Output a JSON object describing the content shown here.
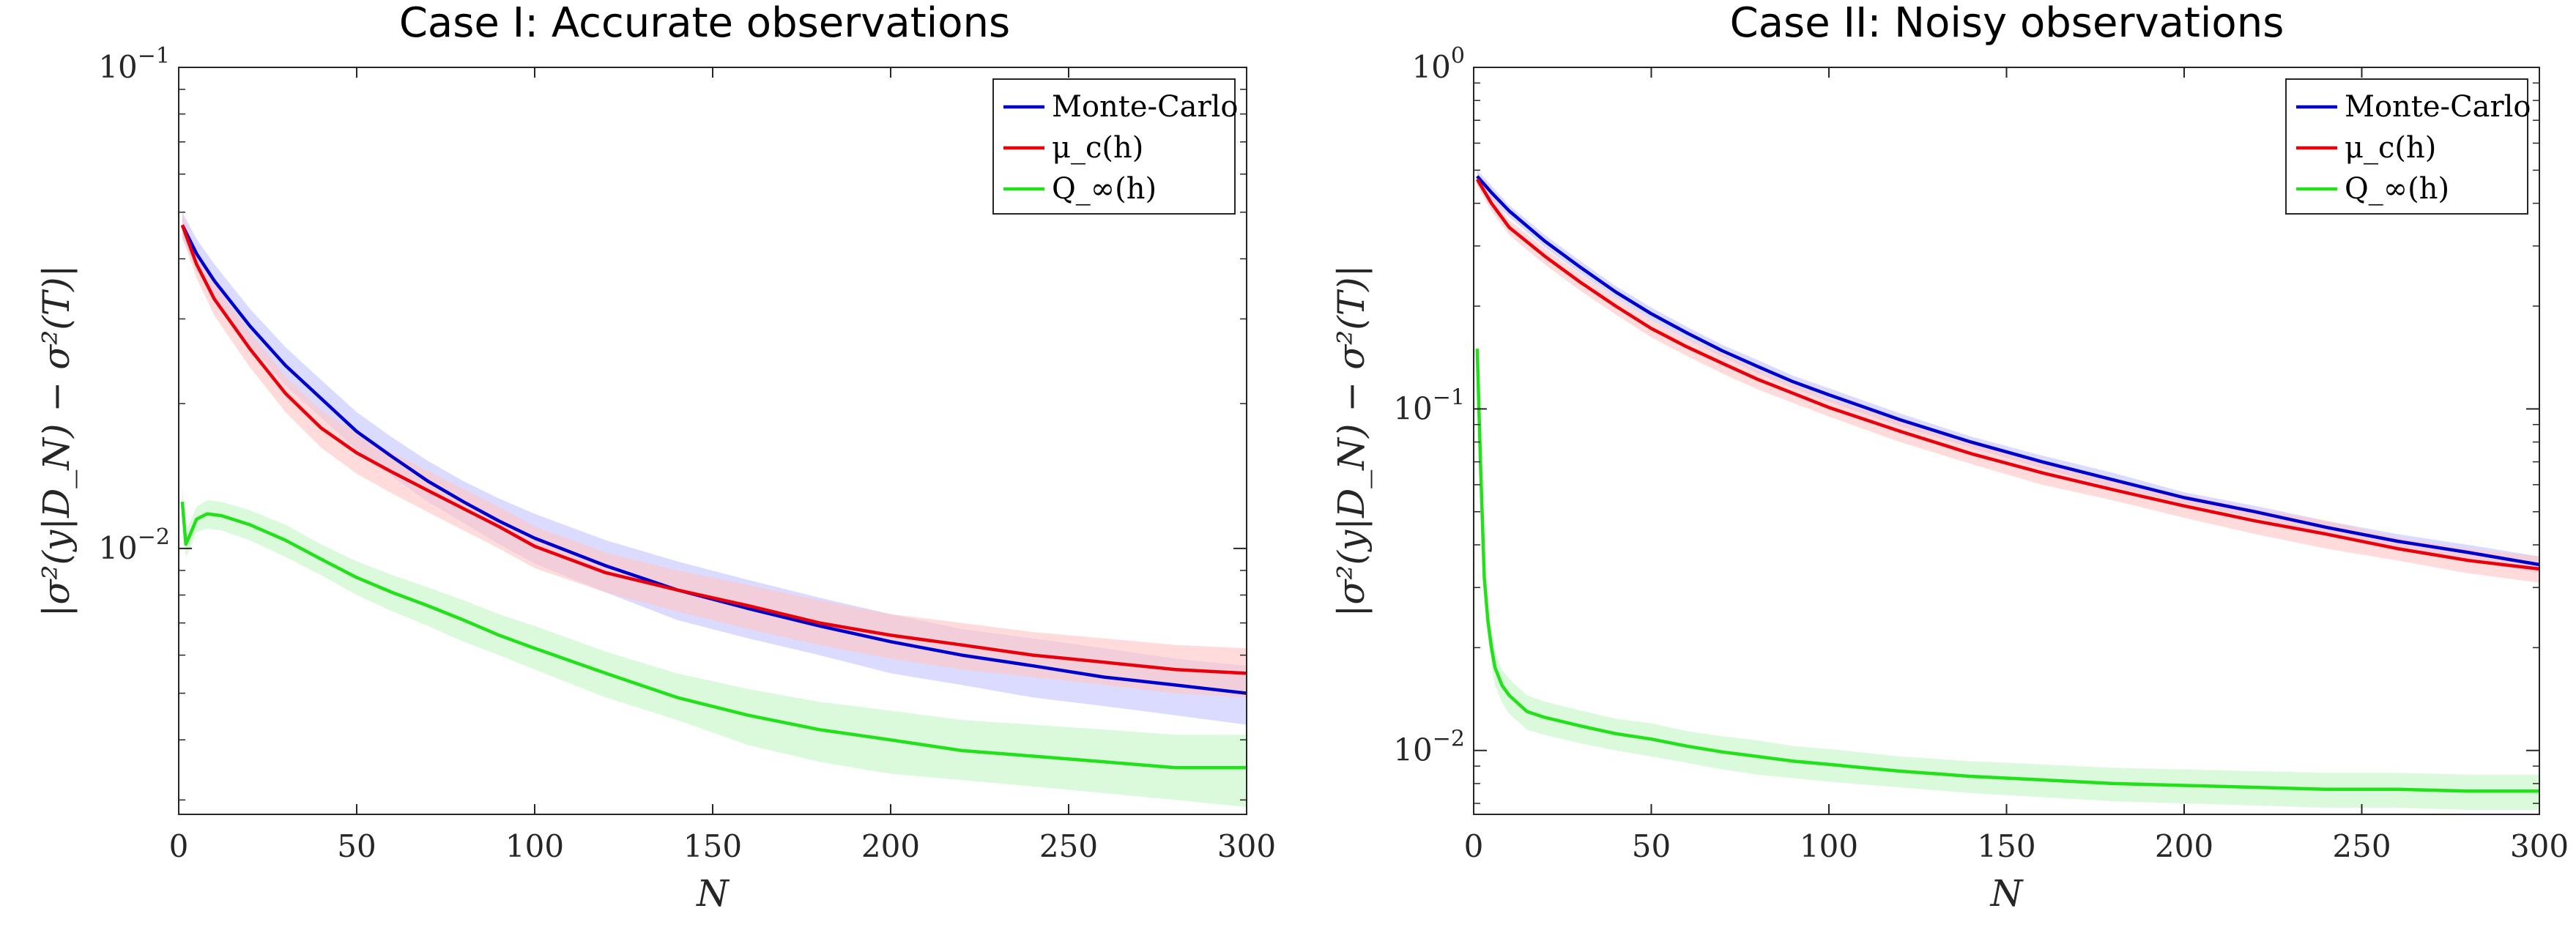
{
  "chart_data": [
    {
      "type": "line",
      "title": "Case I: Accurate observations",
      "xlabel": "N",
      "ylabel": "|σ²(y|D_N) − σ²(T)|",
      "yscale": "log",
      "xlim": [
        0,
        300
      ],
      "ylim": [
        0.0028,
        0.1
      ],
      "x_ticks": [
        "0",
        "50",
        "100",
        "150",
        "200",
        "250",
        "300"
      ],
      "y_ticks": [
        {
          "value": 0.1,
          "base": "10",
          "exp": "−1"
        },
        {
          "value": 0.01,
          "base": "10",
          "exp": "−2"
        }
      ],
      "legend_position": "top-right",
      "series": [
        {
          "name": "Monte-Carlo",
          "color": "#0000cc",
          "band": "#c8c8ff",
          "x": [
            1,
            5,
            10,
            20,
            30,
            40,
            50,
            60,
            70,
            80,
            90,
            100,
            120,
            140,
            160,
            180,
            200,
            220,
            240,
            260,
            280,
            300
          ],
          "y": [
            0.047,
            0.041,
            0.036,
            0.029,
            0.024,
            0.0205,
            0.0175,
            0.0155,
            0.0138,
            0.0125,
            0.0114,
            0.0105,
            0.0092,
            0.0082,
            0.0075,
            0.0069,
            0.0064,
            0.006,
            0.0057,
            0.0054,
            0.0052,
            0.005
          ],
          "lo": [
            0.044,
            0.038,
            0.033,
            0.0265,
            0.0218,
            0.0187,
            0.016,
            0.0141,
            0.0125,
            0.0113,
            0.0102,
            0.0093,
            0.0081,
            0.0071,
            0.0065,
            0.006,
            0.0055,
            0.0052,
            0.0049,
            0.0047,
            0.0045,
            0.0043
          ],
          "hi": [
            0.05,
            0.044,
            0.039,
            0.0315,
            0.0262,
            0.0224,
            0.0192,
            0.017,
            0.0152,
            0.0138,
            0.0127,
            0.0118,
            0.0104,
            0.0094,
            0.0086,
            0.0079,
            0.0073,
            0.0068,
            0.0065,
            0.0062,
            0.0059,
            0.0057
          ]
        },
        {
          "name": "μ_c(h)",
          "color": "#e8000b",
          "band": "#ffc8c8",
          "x": [
            1,
            5,
            10,
            20,
            30,
            40,
            50,
            60,
            70,
            80,
            90,
            100,
            120,
            140,
            160,
            180,
            200,
            220,
            240,
            260,
            280,
            300
          ],
          "y": [
            0.047,
            0.039,
            0.033,
            0.026,
            0.021,
            0.0178,
            0.0158,
            0.0144,
            0.0132,
            0.0121,
            0.0111,
            0.0101,
            0.0089,
            0.0082,
            0.0076,
            0.007,
            0.0066,
            0.0063,
            0.006,
            0.0058,
            0.0056,
            0.0055
          ],
          "lo": [
            0.0445,
            0.0365,
            0.0305,
            0.0238,
            0.0192,
            0.0162,
            0.0143,
            0.013,
            0.0119,
            0.0109,
            0.01,
            0.0091,
            0.0081,
            0.0074,
            0.0068,
            0.0063,
            0.0059,
            0.0056,
            0.0054,
            0.0052,
            0.005,
            0.0049
          ],
          "hi": [
            0.0495,
            0.0415,
            0.0355,
            0.0282,
            0.0228,
            0.0194,
            0.0173,
            0.0158,
            0.0145,
            0.0133,
            0.0122,
            0.0111,
            0.0098,
            0.009,
            0.0084,
            0.0078,
            0.0073,
            0.007,
            0.0067,
            0.0065,
            0.0063,
            0.0062
          ]
        },
        {
          "name": "Q_∞(h)",
          "color": "#22e01a",
          "band": "#c8f7c8",
          "x": [
            1,
            2,
            3,
            5,
            8,
            12,
            20,
            30,
            40,
            50,
            60,
            70,
            80,
            90,
            100,
            120,
            140,
            160,
            180,
            200,
            220,
            240,
            260,
            280,
            300
          ],
          "y": [
            0.0125,
            0.0102,
            0.0106,
            0.0115,
            0.0118,
            0.0117,
            0.0112,
            0.0104,
            0.0095,
            0.0087,
            0.0081,
            0.0076,
            0.0071,
            0.0066,
            0.0062,
            0.0055,
            0.0049,
            0.0045,
            0.0042,
            0.004,
            0.0038,
            0.0037,
            0.0036,
            0.0035,
            0.0035
          ],
          "lo": [
            0.0115,
            0.0096,
            0.0099,
            0.0108,
            0.011,
            0.0109,
            0.0104,
            0.0096,
            0.0088,
            0.008,
            0.0074,
            0.0069,
            0.0064,
            0.006,
            0.0056,
            0.0049,
            0.0044,
            0.0039,
            0.0036,
            0.0034,
            0.0033,
            0.0032,
            0.0031,
            0.003,
            0.0029
          ],
          "hi": [
            0.0135,
            0.0108,
            0.0113,
            0.0122,
            0.0126,
            0.0125,
            0.012,
            0.0112,
            0.0102,
            0.0094,
            0.0088,
            0.0083,
            0.0078,
            0.0073,
            0.0069,
            0.0061,
            0.0055,
            0.0051,
            0.0048,
            0.0046,
            0.0044,
            0.0043,
            0.0042,
            0.0041,
            0.0041
          ]
        }
      ]
    },
    {
      "type": "line",
      "title": "Case II: Noisy observations",
      "xlabel": "N",
      "ylabel": "|σ²(y|D_N) − σ²(T)|",
      "yscale": "log",
      "xlim": [
        0,
        300
      ],
      "ylim": [
        0.0065,
        1
      ],
      "x_ticks": [
        "0",
        "50",
        "100",
        "150",
        "200",
        "250",
        "300"
      ],
      "y_ticks": [
        {
          "value": 1,
          "base": "10",
          "exp": "0"
        },
        {
          "value": 0.1,
          "base": "10",
          "exp": "−1"
        },
        {
          "value": 0.01,
          "base": "10",
          "exp": "−2"
        }
      ],
      "legend_position": "top-right",
      "series": [
        {
          "name": "Monte-Carlo",
          "color": "#0000cc",
          "band": "#c8c8ff",
          "x": [
            1,
            5,
            10,
            20,
            30,
            40,
            50,
            60,
            70,
            80,
            90,
            100,
            120,
            140,
            160,
            180,
            200,
            220,
            240,
            260,
            280,
            300
          ],
          "y": [
            0.48,
            0.43,
            0.38,
            0.31,
            0.26,
            0.22,
            0.19,
            0.167,
            0.148,
            0.133,
            0.12,
            0.11,
            0.093,
            0.08,
            0.07,
            0.062,
            0.055,
            0.05,
            0.045,
            0.041,
            0.038,
            0.035
          ],
          "lo": [
            0.46,
            0.41,
            0.365,
            0.297,
            0.249,
            0.211,
            0.182,
            0.16,
            0.142,
            0.127,
            0.115,
            0.105,
            0.089,
            0.077,
            0.067,
            0.059,
            0.053,
            0.048,
            0.043,
            0.039,
            0.036,
            0.033
          ],
          "hi": [
            0.5,
            0.45,
            0.395,
            0.323,
            0.271,
            0.229,
            0.198,
            0.174,
            0.154,
            0.139,
            0.125,
            0.115,
            0.097,
            0.083,
            0.073,
            0.065,
            0.057,
            0.052,
            0.047,
            0.043,
            0.04,
            0.037
          ]
        },
        {
          "name": "μ_c(h)",
          "color": "#e8000b",
          "band": "#ffc8c8",
          "x": [
            1,
            5,
            10,
            20,
            30,
            40,
            50,
            60,
            70,
            80,
            90,
            100,
            120,
            140,
            160,
            180,
            200,
            220,
            240,
            260,
            280,
            300
          ],
          "y": [
            0.47,
            0.4,
            0.34,
            0.28,
            0.235,
            0.2,
            0.172,
            0.152,
            0.136,
            0.122,
            0.111,
            0.101,
            0.086,
            0.074,
            0.065,
            0.058,
            0.052,
            0.047,
            0.043,
            0.039,
            0.036,
            0.034
          ],
          "lo": [
            0.45,
            0.38,
            0.323,
            0.265,
            0.222,
            0.189,
            0.162,
            0.143,
            0.127,
            0.114,
            0.104,
            0.095,
            0.08,
            0.069,
            0.06,
            0.054,
            0.048,
            0.043,
            0.039,
            0.036,
            0.033,
            0.031
          ],
          "hi": [
            0.49,
            0.42,
            0.357,
            0.295,
            0.248,
            0.211,
            0.182,
            0.161,
            0.145,
            0.13,
            0.118,
            0.107,
            0.092,
            0.079,
            0.07,
            0.062,
            0.056,
            0.051,
            0.047,
            0.042,
            0.039,
            0.037
          ]
        },
        {
          "name": "Q_∞(h)",
          "color": "#22e01a",
          "band": "#c8f7c8",
          "x": [
            1,
            2,
            3,
            4,
            5,
            6,
            8,
            10,
            15,
            20,
            30,
            40,
            50,
            60,
            70,
            80,
            90,
            100,
            120,
            140,
            160,
            180,
            200,
            220,
            240,
            260,
            280,
            300
          ],
          "y": [
            0.15,
            0.065,
            0.032,
            0.024,
            0.02,
            0.0175,
            0.0155,
            0.0145,
            0.013,
            0.0125,
            0.0118,
            0.0112,
            0.0108,
            0.0103,
            0.0099,
            0.0096,
            0.0093,
            0.0091,
            0.0087,
            0.0084,
            0.0082,
            0.008,
            0.0079,
            0.0078,
            0.0077,
            0.0077,
            0.0076,
            0.0076
          ],
          "lo": [
            0.14,
            0.06,
            0.029,
            0.0215,
            0.0178,
            0.0155,
            0.0138,
            0.0128,
            0.0115,
            0.0111,
            0.0105,
            0.01,
            0.0096,
            0.0092,
            0.0088,
            0.0085,
            0.0083,
            0.0081,
            0.0078,
            0.0075,
            0.0073,
            0.0071,
            0.007,
            0.0069,
            0.0068,
            0.0068,
            0.0067,
            0.0067
          ],
          "hi": [
            0.16,
            0.07,
            0.035,
            0.0265,
            0.0222,
            0.0195,
            0.0172,
            0.0162,
            0.0145,
            0.0139,
            0.0131,
            0.0124,
            0.012,
            0.0114,
            0.011,
            0.0107,
            0.0103,
            0.0101,
            0.0096,
            0.0093,
            0.0091,
            0.0089,
            0.0088,
            0.0087,
            0.0086,
            0.0086,
            0.0085,
            0.0085
          ]
        }
      ]
    }
  ]
}
